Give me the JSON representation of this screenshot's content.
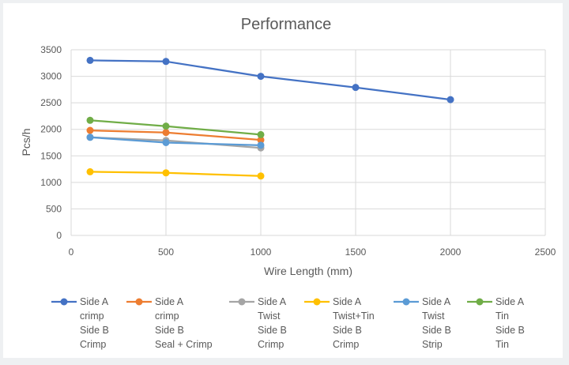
{
  "chart_data": {
    "type": "line",
    "title": "Performance",
    "xlabel": "Wire Length (mm)",
    "ylabel": "Pcs/h",
    "xlim": [
      0,
      2500
    ],
    "ylim": [
      0,
      3500
    ],
    "xticks": [
      0,
      500,
      1000,
      1500,
      2000,
      2500
    ],
    "yticks": [
      0,
      500,
      1000,
      1500,
      2000,
      2500,
      3000,
      3500
    ],
    "grid": true,
    "legend_position": "bottom",
    "series": [
      {
        "name": "Side A crimp Side B Crimp",
        "legend_lines": [
          "Side A",
          "crimp",
          "Side B",
          "Crimp"
        ],
        "color": "#4472c4",
        "points": [
          [
            100,
            3300
          ],
          [
            500,
            3280
          ],
          [
            1000,
            3000
          ],
          [
            1500,
            2790
          ],
          [
            2000,
            2560
          ]
        ]
      },
      {
        "name": "Side A crimp Side B Seal + Crimp",
        "legend_lines": [
          "Side A",
          "crimp",
          "Side B",
          "Seal + Crimp"
        ],
        "color": "#ed7d31",
        "points": [
          [
            100,
            1980
          ],
          [
            500,
            1940
          ],
          [
            1000,
            1800
          ]
        ]
      },
      {
        "name": "Side A Twist Side B Crimp",
        "legend_lines": [
          "Side A",
          "Twist",
          "Side B",
          "Crimp"
        ],
        "color": "#a5a5a5",
        "points": [
          [
            100,
            1850
          ],
          [
            500,
            1790
          ],
          [
            1000,
            1650
          ]
        ]
      },
      {
        "name": "Side A Twist+Tin Side B Crimp",
        "legend_lines": [
          "Side A",
          "Twist+Tin",
          "Side B",
          "Crimp"
        ],
        "color": "#ffc000",
        "points": [
          [
            100,
            1200
          ],
          [
            500,
            1180
          ],
          [
            1000,
            1120
          ]
        ]
      },
      {
        "name": "Side A Twist Side B Strip",
        "legend_lines": [
          "Side A",
          "Twist",
          "Side B",
          "Strip"
        ],
        "color": "#5b9bd5",
        "points": [
          [
            100,
            1850
          ],
          [
            500,
            1750
          ],
          [
            1000,
            1700
          ]
        ]
      },
      {
        "name": "Side A Tin Side B Tin",
        "legend_lines": [
          "Side A",
          "Tin",
          "Side B",
          "Tin"
        ],
        "color": "#70ad47",
        "points": [
          [
            100,
            2170
          ],
          [
            500,
            2060
          ],
          [
            1000,
            1900
          ]
        ]
      }
    ]
  }
}
